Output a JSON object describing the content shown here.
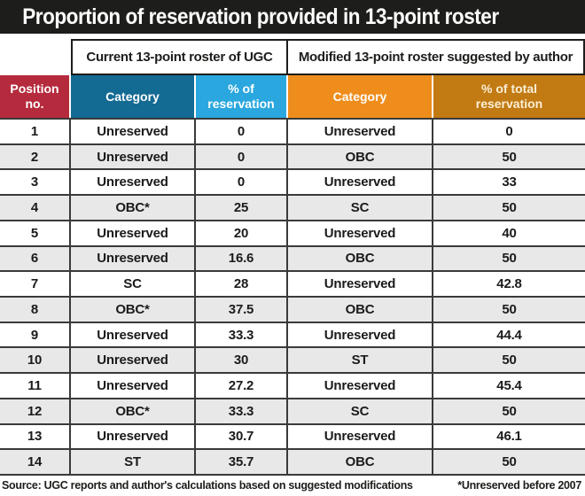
{
  "title": "Proportion of reservation provided in 13-point roster",
  "colors": {
    "title_bar": "#1d1d1b",
    "position_header": "#b52a3c",
    "current_category_header": "#136a93",
    "current_percent_header": "#2aa7de",
    "modified_category_header": "#ef8d1c",
    "modified_percent_header": "#c27a12",
    "row_stripe": "#e8e8e8",
    "grid_line": "#3a3a3a"
  },
  "chart_data": {
    "type": "table",
    "title": "Proportion of reservation provided in 13-point roster",
    "column_groups": [
      "Current 13-point roster of UGC",
      "Modified 13-point roster suggested by author"
    ],
    "columns": [
      "Position no.",
      "Category",
      "% of reservation",
      "Category",
      "% of total reservation"
    ],
    "rows": [
      [
        "1",
        "Unreserved",
        "0",
        "Unreserved",
        "0"
      ],
      [
        "2",
        "Unreserved",
        "0",
        "OBC",
        "50"
      ],
      [
        "3",
        "Unreserved",
        "0",
        "Unreserved",
        "33"
      ],
      [
        "4",
        "OBC*",
        "25",
        "SC",
        "50"
      ],
      [
        "5",
        "Unreserved",
        "20",
        "Unreserved",
        "40"
      ],
      [
        "6",
        "Unreserved",
        "16.6",
        "OBC",
        "50"
      ],
      [
        "7",
        "SC",
        "28",
        "Unreserved",
        "42.8"
      ],
      [
        "8",
        "OBC*",
        "37.5",
        "OBC",
        "50"
      ],
      [
        "9",
        "Unreserved",
        "33.3",
        "Unreserved",
        "44.4"
      ],
      [
        "10",
        "Unreserved",
        "30",
        "ST",
        "50"
      ],
      [
        "11",
        "Unreserved",
        "27.2",
        "Unreserved",
        "45.4"
      ],
      [
        "12",
        "OBC*",
        "33.3",
        "SC",
        "50"
      ],
      [
        "13",
        "Unreserved",
        "30.7",
        "Unreserved",
        "46.1"
      ],
      [
        "14",
        "ST",
        "35.7",
        "OBC",
        "50"
      ]
    ]
  },
  "footer": {
    "source": "Source: UGC reports and author's calculations based on suggested modifications",
    "note": "*Unreserved before 2007"
  }
}
